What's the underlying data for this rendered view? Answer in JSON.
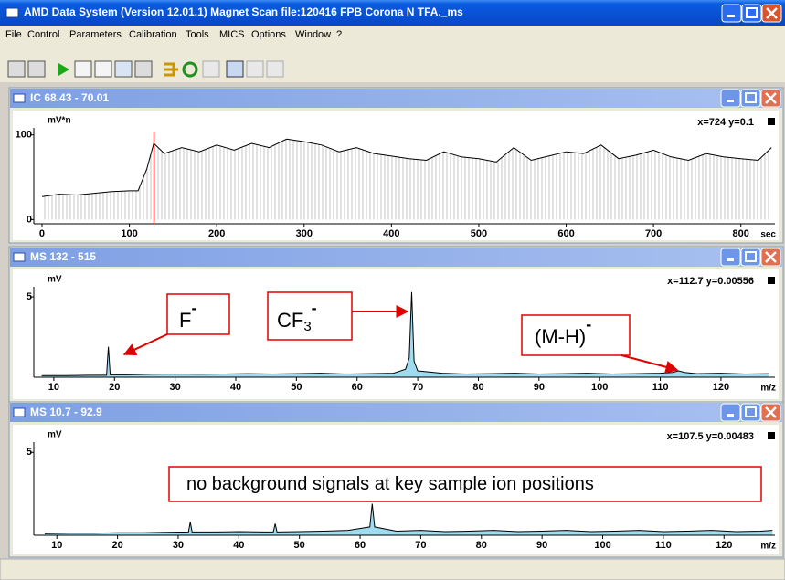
{
  "window": {
    "title": "AMD Data System (Version 12.01.1)  Magnet Scan  file:120416 FPB Corona N TFA._ms",
    "menu": [
      "File",
      "Control",
      "Parameters",
      "Calibration",
      "Tools",
      "MICS",
      "Options",
      "Window",
      "?"
    ]
  },
  "panels": [
    {
      "title": "IC  68.43 - 70.01",
      "y_unit": "mV*n",
      "readout": "x=724 y=0.1",
      "x_unit": "sec",
      "xlim": [
        -9.4,
        839
      ],
      "ylim": [
        -5,
        104
      ],
      "xticks": [
        0,
        100,
        200,
        300,
        400,
        500,
        600,
        700,
        800
      ],
      "yticks": [
        0,
        100
      ],
      "line_color": "#000000",
      "fill": "stems",
      "cursor_x": 128,
      "cursor_color": "#ff0000",
      "trace": {
        "x": [
          0,
          20,
          40,
          60,
          80,
          100,
          110,
          120,
          128,
          140,
          160,
          180,
          200,
          220,
          240,
          260,
          280,
          300,
          320,
          340,
          360,
          380,
          400,
          420,
          440,
          460,
          480,
          500,
          520,
          540,
          560,
          580,
          600,
          620,
          640,
          660,
          680,
          700,
          720,
          740,
          760,
          780,
          800,
          820,
          835
        ],
        "y": [
          27,
          30,
          29,
          31,
          33,
          34,
          34,
          60,
          90,
          78,
          85,
          80,
          88,
          82,
          90,
          85,
          95,
          92,
          88,
          80,
          85,
          78,
          75,
          72,
          70,
          80,
          74,
          72,
          68,
          85,
          70,
          75,
          80,
          78,
          88,
          72,
          76,
          82,
          74,
          70,
          78,
          74,
          72,
          70,
          85
        ]
      },
      "annotations": []
    },
    {
      "title": "MS  132 - 515",
      "y_unit": "mV",
      "readout": "x=112.7 y=0.00556",
      "x_unit": "m/z",
      "xlim": [
        6.7,
        128.9
      ],
      "ylim": [
        0,
        5.4
      ],
      "xticks": [
        10,
        20,
        30,
        40,
        50,
        60,
        70,
        80,
        90,
        100,
        110,
        120
      ],
      "yticks": [
        5
      ],
      "line_color": "#000000",
      "fill": "area",
      "fill_color": "#9fdcef",
      "trace": {
        "x": [
          8,
          12,
          16,
          18.7,
          19,
          19.3,
          22,
          26,
          30,
          34,
          38,
          42,
          46,
          50,
          54,
          58,
          62,
          66,
          68,
          68.6,
          69,
          69.4,
          70,
          74,
          78,
          82,
          86,
          90,
          94,
          98,
          102,
          106,
          110,
          112,
          113,
          114,
          116,
          120,
          124,
          128
        ],
        "y": [
          0.1,
          0.1,
          0.12,
          0.12,
          1.9,
          0.15,
          0.15,
          0.18,
          0.2,
          0.18,
          0.2,
          0.22,
          0.2,
          0.22,
          0.25,
          0.2,
          0.22,
          0.25,
          0.5,
          1.2,
          5.3,
          1.0,
          0.4,
          0.25,
          0.2,
          0.22,
          0.25,
          0.2,
          0.22,
          0.25,
          0.2,
          0.22,
          0.25,
          0.3,
          0.4,
          0.3,
          0.22,
          0.25,
          0.2,
          0.22
        ]
      },
      "annotations": [
        {
          "text": "F",
          "sup": "-"
        },
        {
          "text": "CF",
          "sub": "3",
          "sup": "-"
        },
        {
          "text": "(M-H)",
          "sup": "-"
        }
      ]
    },
    {
      "title": "MS  10.7 - 92.9",
      "y_unit": "mV",
      "readout": "x=107.5 y=0.00483",
      "x_unit": "m/z",
      "xlim": [
        6.2,
        128.4
      ],
      "ylim": [
        0,
        5.4
      ],
      "xticks": [
        10,
        20,
        30,
        40,
        50,
        60,
        70,
        80,
        90,
        100,
        110,
        120
      ],
      "yticks": [
        5
      ],
      "line_color": "#000000",
      "fill": "area",
      "fill_color": "#9fdcef",
      "trace": {
        "x": [
          8,
          12,
          16,
          20,
          24,
          28,
          31.7,
          32,
          32.3,
          36,
          40,
          44,
          45.7,
          46,
          46.3,
          50,
          54,
          58,
          61.6,
          62,
          62.4,
          66,
          70,
          74,
          78,
          82,
          86,
          90,
          94,
          98,
          102,
          106,
          110,
          114,
          118,
          122,
          126,
          128
        ],
        "y": [
          0.1,
          0.12,
          0.12,
          0.15,
          0.15,
          0.18,
          0.2,
          0.8,
          0.2,
          0.2,
          0.22,
          0.2,
          0.2,
          0.7,
          0.2,
          0.22,
          0.25,
          0.3,
          0.5,
          1.9,
          0.5,
          0.25,
          0.3,
          0.22,
          0.25,
          0.3,
          0.22,
          0.25,
          0.3,
          0.22,
          0.25,
          0.3,
          0.22,
          0.25,
          0.3,
          0.22,
          0.25,
          0.3
        ]
      },
      "annotations": [
        {
          "text": "no background signals at key sample ion positions"
        }
      ]
    }
  ]
}
